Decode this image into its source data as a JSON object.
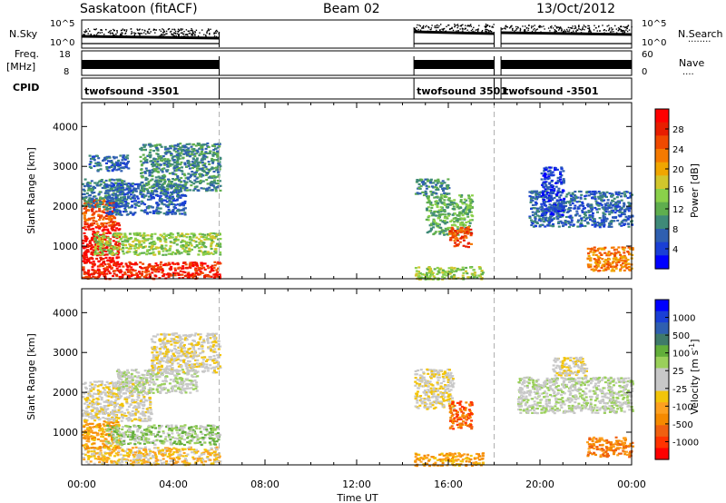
{
  "header": {
    "station": "Saskatoon (fitACF)",
    "beam": "Beam 02",
    "date": "13/Oct/2012"
  },
  "colors": {
    "power": [
      "#0000ff",
      "#1a3fd6",
      "#2f5fb0",
      "#3f8a78",
      "#5fae4e",
      "#8ad04a",
      "#d2c62c",
      "#f0a600",
      "#f57a00",
      "#f04a00",
      "#e81e00",
      "#ff0000"
    ],
    "velocity": [
      "#ff0000",
      "#ff3300",
      "#f06010",
      "#f58a00",
      "#fda020",
      "#f2c40a",
      "#c8c8c8",
      "#c8c8c8",
      "#9ad05a",
      "#62ae3a",
      "#3f7a6a",
      "#2f5fb0",
      "#1a3fd6",
      "#0000ff"
    ],
    "grid_line": "#b0b0b0"
  },
  "chart_data": [
    {
      "type": "line",
      "name": "noise",
      "ylabel_left": "N.Sky",
      "ylabel_right": "N.Search",
      "yticks_left": [
        "10^5",
        "10^0"
      ],
      "yticks_right": [
        "10^5",
        "10^0"
      ],
      "segments": [
        {
          "start": 0.0,
          "end": 6.0,
          "level": 0.58
        },
        {
          "start": 14.5,
          "end": 18.0,
          "level": 0.42
        },
        {
          "start": 18.3,
          "end": 24.0,
          "level": 0.45
        }
      ]
    },
    {
      "type": "line",
      "name": "frequency-nave",
      "ylabel_left": "Freq.",
      "ylabel_left_unit": "[MHz]",
      "ylabel_right": "Nave",
      "yticks_left": [
        "18",
        "8"
      ],
      "yticks_right": [
        "60",
        "0"
      ],
      "segments": [
        {
          "start": 0.0,
          "end": 6.0
        },
        {
          "start": 14.5,
          "end": 18.0
        },
        {
          "start": 18.3,
          "end": 24.0
        }
      ]
    },
    {
      "type": "table",
      "name": "cpid",
      "label": "CPID",
      "boundaries": [
        6.0,
        14.5,
        18.0,
        18.3
      ],
      "programs": [
        {
          "start": 0.0,
          "text": "twofsound -3501"
        },
        {
          "start": 14.5,
          "text": "twofsound 3501"
        },
        {
          "start": 18.3,
          "text": "twofsound -3501"
        }
      ]
    },
    {
      "type": "heatmap",
      "name": "power",
      "ylabel": "Slant Range [km]",
      "ylim": [
        180,
        4600
      ],
      "yticks": [
        1000,
        2000,
        3000,
        4000
      ],
      "xlim": [
        0,
        24
      ],
      "colorbar_label": "Power [dB]",
      "colorbar_ticks": [
        "28",
        "24",
        "20",
        "16",
        "12",
        "8",
        "4"
      ],
      "blobs": [
        {
          "t0": 0.0,
          "t1": 6.0,
          "r0": 200,
          "r1": 620,
          "c": 10
        },
        {
          "t0": 0.0,
          "t1": 1.6,
          "r0": 600,
          "r1": 1600,
          "c": 11
        },
        {
          "t0": 0.0,
          "t1": 1.4,
          "r0": 1500,
          "r1": 2200,
          "c": 9
        },
        {
          "t0": 0.0,
          "t1": 1.8,
          "r0": 2000,
          "r1": 2700,
          "c": 3
        },
        {
          "t0": 0.5,
          "t1": 6.0,
          "r0": 800,
          "r1": 1350,
          "c": 5
        },
        {
          "t0": 1.0,
          "t1": 4.5,
          "r0": 1800,
          "r1": 2600,
          "c": 2
        },
        {
          "t0": 2.5,
          "t1": 6.0,
          "r0": 2400,
          "r1": 3600,
          "c": 3
        },
        {
          "t0": 0.3,
          "t1": 2.0,
          "r0": 2900,
          "r1": 3300,
          "c": 2
        },
        {
          "t0": 14.5,
          "t1": 16.0,
          "r0": 2300,
          "r1": 2700,
          "c": 3
        },
        {
          "t0": 15.0,
          "t1": 17.0,
          "r0": 1300,
          "r1": 2300,
          "c": 4
        },
        {
          "t0": 16.0,
          "t1": 17.0,
          "r0": 1000,
          "r1": 1500,
          "c": 9
        },
        {
          "t0": 14.5,
          "t1": 17.5,
          "r0": 180,
          "r1": 500,
          "c": 5
        },
        {
          "t0": 19.5,
          "t1": 24.0,
          "r0": 1500,
          "r1": 2400,
          "c": 2
        },
        {
          "t0": 22.0,
          "t1": 24.0,
          "r0": 400,
          "r1": 1000,
          "c": 8
        },
        {
          "t0": 20.0,
          "t1": 21.0,
          "r0": 1800,
          "r1": 3000,
          "c": 1
        }
      ]
    },
    {
      "type": "heatmap",
      "name": "velocity",
      "ylabel": "Slant Range [km]",
      "xlabel": "Time UT",
      "ylim": [
        180,
        4600
      ],
      "yticks": [
        1000,
        2000,
        3000,
        4000
      ],
      "xlim": [
        0,
        24
      ],
      "xticks": [
        "00:00",
        "04:00",
        "08:00",
        "12:00",
        "16:00",
        "20:00",
        "00:00"
      ],
      "colorbar_label": "Velocity [m s",
      "colorbar_label_sup": "-1",
      "colorbar_label_end": "]",
      "colorbar_ticks": [
        "1000",
        "500",
        "100",
        "25",
        "-25",
        "-100",
        "-500",
        "-1000"
      ],
      "blobs": [
        {
          "t0": 0.0,
          "t1": 6.0,
          "r0": 200,
          "r1": 650,
          "c": 5
        },
        {
          "t0": 0.0,
          "t1": 1.6,
          "r0": 600,
          "r1": 1300,
          "c": 4
        },
        {
          "t0": 1.0,
          "t1": 6.0,
          "r0": 700,
          "r1": 1200,
          "c": 8
        },
        {
          "t0": 0.0,
          "t1": 3.0,
          "r0": 1300,
          "r1": 2300,
          "c": 6
        },
        {
          "t0": 1.5,
          "t1": 5.0,
          "r0": 2000,
          "r1": 2600,
          "c": 7
        },
        {
          "t0": 3.0,
          "t1": 6.0,
          "r0": 2500,
          "r1": 3500,
          "c": 6
        },
        {
          "t0": 14.5,
          "t1": 16.2,
          "r0": 1600,
          "r1": 2600,
          "c": 6
        },
        {
          "t0": 16.0,
          "t1": 17.0,
          "r0": 1100,
          "r1": 1800,
          "c": 2
        },
        {
          "t0": 14.5,
          "t1": 17.5,
          "r0": 180,
          "r1": 500,
          "c": 4
        },
        {
          "t0": 19.0,
          "t1": 24.0,
          "r0": 1500,
          "r1": 2400,
          "c": 7
        },
        {
          "t0": 22.0,
          "t1": 24.0,
          "r0": 400,
          "r1": 900,
          "c": 3
        },
        {
          "t0": 20.5,
          "t1": 22.0,
          "r0": 2400,
          "r1": 2900,
          "c": 6
        }
      ]
    }
  ]
}
